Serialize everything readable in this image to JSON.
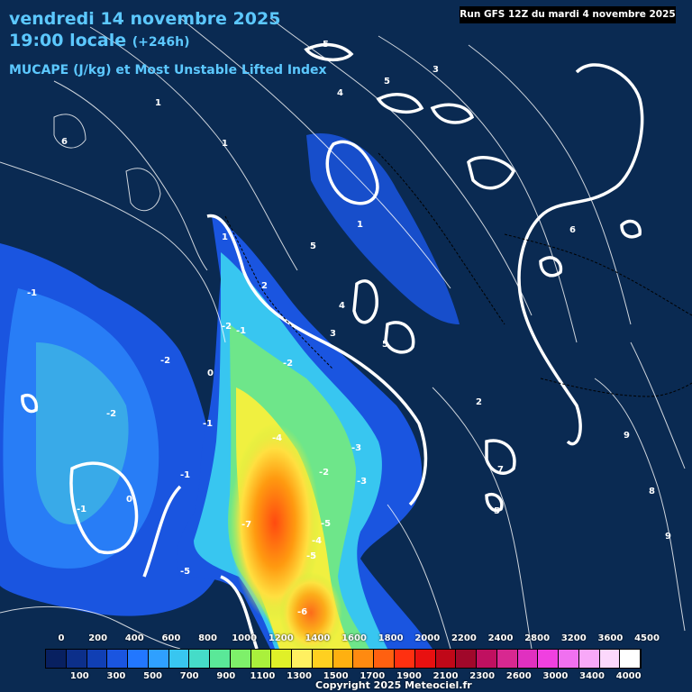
{
  "header": {
    "date_line": "vendredi 14 novembre 2025",
    "time_line": "19:00 locale",
    "lead_time": "(+246h)",
    "parameter": "MUCAPE (J/kg) et Most Unstable Lifted Index"
  },
  "run_info": "Run GFS 12Z du mardi 4 novembre 2025",
  "copyright": "Copyright 2025 Meteociel.fr",
  "legend": {
    "top_labels": [
      "0",
      "200",
      "400",
      "600",
      "800",
      "1000",
      "1200",
      "1400",
      "1600",
      "1800",
      "2000",
      "2200",
      "2400",
      "2800",
      "3200",
      "3600",
      "4500"
    ],
    "bottom_labels": [
      "100",
      "300",
      "500",
      "700",
      "900",
      "1100",
      "1300",
      "1500",
      "1700",
      "1900",
      "2100",
      "2300",
      "2600",
      "3000",
      "3400",
      "4000"
    ],
    "colors": [
      "#082060",
      "#0c2f8a",
      "#103fb4",
      "#1a55e0",
      "#2277ff",
      "#2fa0ff",
      "#38c6f0",
      "#45dcc8",
      "#5ae898",
      "#7ef06a",
      "#aaf03c",
      "#e0f028",
      "#fff060",
      "#ffd020",
      "#ffb010",
      "#ff8a10",
      "#ff6010",
      "#ff3010",
      "#e81010",
      "#c00818",
      "#a0082a",
      "#c01060",
      "#d82890",
      "#e030c0",
      "#f040e0",
      "#f070f0",
      "#f8a8f8",
      "#fcd8fc",
      "#ffffff"
    ]
  },
  "lifted_index_labels": [
    "-1",
    "-1",
    "-2",
    "-2",
    "-2",
    "-1",
    "-2",
    "-4",
    "-2",
    "-3",
    "-3",
    "-5",
    "-4",
    "-5",
    "-6",
    "-7",
    "-5",
    "-1",
    "-1",
    "0",
    "0",
    "1",
    "1",
    "1",
    "1",
    "2",
    "2",
    "3",
    "3",
    "4",
    "4",
    "5",
    "5",
    "5",
    "5",
    "5",
    "6",
    "6",
    "7",
    "8",
    "9",
    "9"
  ]
}
